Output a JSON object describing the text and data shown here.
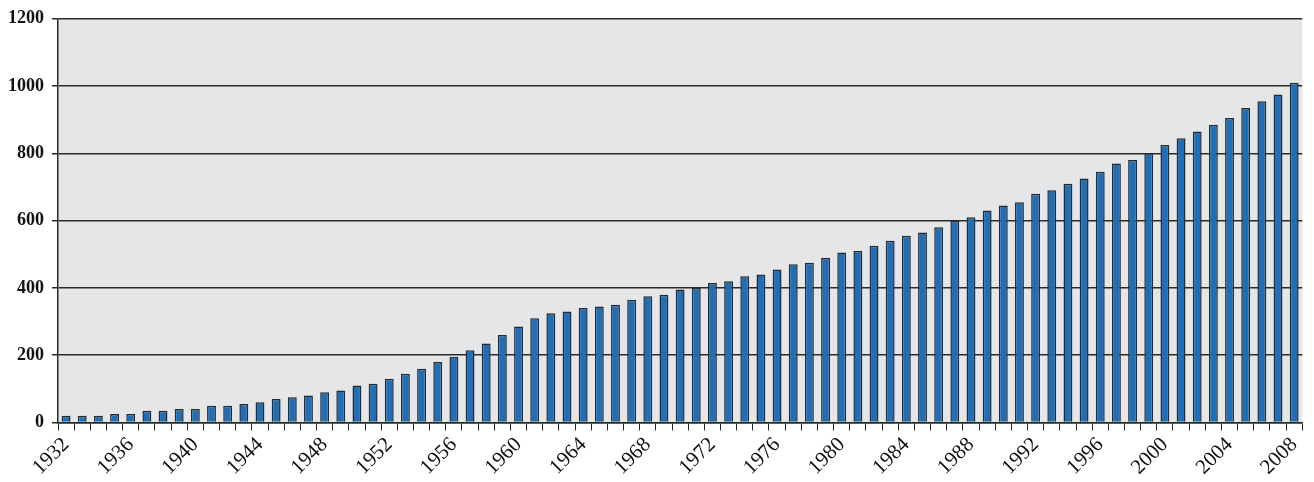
{
  "chart_data": {
    "type": "bar",
    "categories": [
      "1932",
      null,
      null,
      null,
      "1936",
      null,
      null,
      null,
      "1940",
      null,
      null,
      null,
      "1944",
      null,
      null,
      null,
      "1948",
      null,
      null,
      null,
      "1952",
      null,
      null,
      null,
      "1956",
      null,
      null,
      null,
      "1960",
      null,
      null,
      null,
      "1964",
      null,
      null,
      null,
      "1968",
      null,
      null,
      null,
      "1972",
      null,
      null,
      null,
      "1976",
      null,
      null,
      null,
      "1980",
      null,
      null,
      null,
      "1984",
      null,
      null,
      null,
      "1988",
      null,
      null,
      null,
      "1992",
      null,
      null,
      null,
      "1996",
      null,
      null,
      null,
      "2000",
      null,
      null,
      null,
      "2004",
      null,
      null,
      null,
      "2008"
    ],
    "values": [
      20,
      20,
      20,
      25,
      25,
      35,
      35,
      40,
      40,
      50,
      50,
      55,
      60,
      70,
      75,
      80,
      90,
      95,
      110,
      115,
      130,
      145,
      160,
      180,
      195,
      215,
      235,
      260,
      285,
      310,
      325,
      330,
      340,
      345,
      350,
      365,
      375,
      380,
      395,
      400,
      415,
      420,
      435,
      440,
      455,
      470,
      475,
      490,
      505,
      510,
      525,
      540,
      555,
      565,
      580,
      600,
      610,
      630,
      645,
      655,
      680,
      690,
      710,
      725,
      745,
      770,
      780,
      800,
      825,
      845,
      865,
      885,
      905,
      935,
      955,
      975,
      1010
    ],
    "color": "#1f6fb8",
    "ylim": [
      0,
      1200
    ],
    "yticks": [
      0,
      200,
      400,
      600,
      800,
      1000,
      1200
    ],
    "grid": "y"
  }
}
